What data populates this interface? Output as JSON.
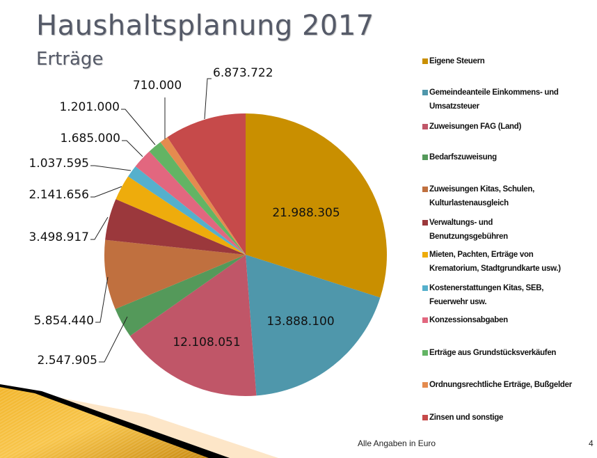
{
  "slide": {
    "title": "Haushaltsplanung 2017",
    "subtitle": "Erträge",
    "footer_note": "Alle Angaben in Euro",
    "page_number": "4"
  },
  "chart_data": {
    "type": "pie",
    "title": "Haushaltsplanung 2017",
    "subtitle": "Erträge",
    "unit": "Euro",
    "start_angle": "12 o'clock, clockwise",
    "legend_position": "right",
    "categories": [
      "Eigene Steuern",
      "Gemeindeanteile Einkommens- und Umsatzsteuer",
      "Zuweisungen FAG (Land)",
      "Bedarfszuweisung",
      "Zuweisungen Kitas, Schulen, Kulturlastenausgleich",
      "Verwaltungs- und Benutzungsgebühren",
      "Mieten, Pachten, Erträge von Krematorium, Stadtgrundkarte usw.)",
      "Kostenerstattungen Kitas, SEB, Feuerwehr usw.",
      "Konzessionsabgaben",
      "Erträge aus Grundstücksverkäufen",
      "Ordnungsrechtliche Erträge, Bußgelder",
      "Zinsen und sonstige"
    ],
    "values": [
      21988305,
      13888100,
      12108051,
      2547905,
      5854440,
      3498917,
      2141656,
      1037595,
      1685000,
      1201000,
      710000,
      6873722
    ],
    "value_labels": [
      "21.988.305",
      "13.888.100",
      "12.108.051",
      "2.547.905",
      "5.854.440",
      "3.498.917",
      "2.141.656",
      "1.037.595",
      "1.685.000",
      "1.201.000",
      "710.000",
      "6.873.722"
    ],
    "colors": [
      "#c98f00",
      "#4f97ab",
      "#c05668",
      "#54995a",
      "#c0703f",
      "#9b383c",
      "#eeac0c",
      "#55b0cc",
      "#e2677f",
      "#63b464",
      "#e48b4f",
      "#c64a4a"
    ]
  },
  "legend": {
    "items": [
      {
        "label_lines": [
          "Eigene Steuern"
        ],
        "color": "#c98f00"
      },
      {
        "label_lines": [
          "Gemeindeanteile Einkommens- und",
          "Umsatzsteuer"
        ],
        "color": "#4f97ab"
      },
      {
        "label_lines": [
          "Zuweisungen FAG (Land)"
        ],
        "color": "#c05668"
      },
      {
        "label_lines": [
          "Bedarfszuweisung"
        ],
        "color": "#54995a"
      },
      {
        "label_lines": [
          "Zuweisungen Kitas, Schulen,",
          "Kulturlastenausgleich"
        ],
        "color": "#c0703f"
      },
      {
        "label_lines": [
          "Verwaltungs- und",
          "Benutzungsgebühren"
        ],
        "color": "#9b383c"
      },
      {
        "label_lines": [
          "Mieten, Pachten, Erträge von",
          "Krematorium, Stadtgrundkarte usw.)"
        ],
        "color": "#eeac0c"
      },
      {
        "label_lines": [
          "Kostenerstattungen Kitas, SEB,",
          "Feuerwehr usw."
        ],
        "color": "#55b0cc"
      },
      {
        "label_lines": [
          "Konzessionsabgaben"
        ],
        "color": "#e2677f"
      },
      {
        "label_lines": [
          "Erträge aus Grundstücksverkäufen"
        ],
        "color": "#63b464"
      },
      {
        "label_lines": [
          "Ordnungsrechtliche Erträge, Bußgelder"
        ],
        "color": "#e48b4f"
      },
      {
        "label_lines": [
          "Zinsen und sonstige"
        ],
        "color": "#c64a4a"
      }
    ]
  }
}
